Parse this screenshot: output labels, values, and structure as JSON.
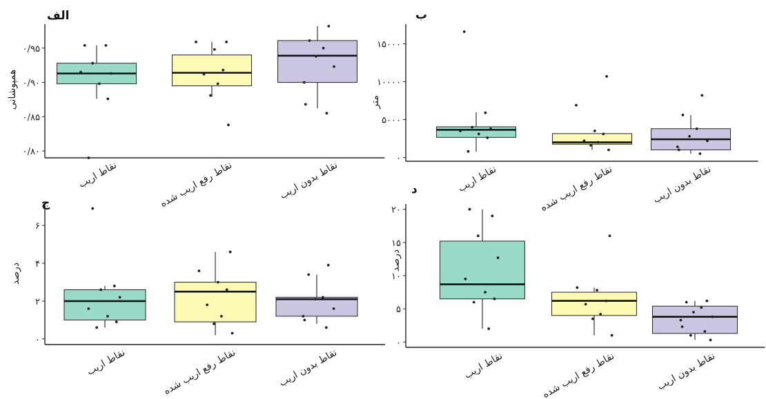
{
  "chart_data": [
    {
      "type": "box",
      "panel_label": "الف",
      "ylabel": "همپوشانی",
      "categories": [
        "نقاط اریب",
        "نقاط رفع اریب شده",
        "نقاط بدون اریب"
      ],
      "yticks": [
        {
          "value": 0.8,
          "label": "۰/۸۰"
        },
        {
          "value": 0.85,
          "label": "۰/۸۵"
        },
        {
          "value": 0.9,
          "label": "۰/۹۰"
        },
        {
          "value": 0.95,
          "label": "۰/۹۵"
        }
      ],
      "ylim": [
        0.79,
        0.985
      ],
      "boxes": [
        {
          "q1": 0.898,
          "median": 0.913,
          "q3": 0.928,
          "whisker_low": 0.876,
          "whisker_high": 0.954
        },
        {
          "q1": 0.895,
          "median": 0.914,
          "q3": 0.94,
          "whisker_low": 0.879,
          "whisker_high": 0.959
        },
        {
          "q1": 0.9,
          "median": 0.939,
          "q3": 0.961,
          "whisker_low": 0.862,
          "whisker_high": 0.982
        }
      ],
      "points": [
        [
          0.954,
          0.954,
          0.928,
          0.913,
          0.915,
          0.898,
          0.876,
          0.79
        ],
        [
          0.959,
          0.959,
          0.948,
          0.918,
          0.912,
          0.898,
          0.881,
          0.838
        ],
        [
          0.982,
          0.961,
          0.95,
          0.938,
          0.923,
          0.9,
          0.868,
          0.855
        ]
      ]
    },
    {
      "type": "box",
      "panel_label": "ب",
      "ylabel": "متر",
      "categories": [
        "نقاط اریب",
        "نقاط رفع اریب شده",
        "نقاط بدون اریب"
      ],
      "yticks": [
        {
          "value": 0,
          "label": "۰"
        },
        {
          "value": 5000,
          "label": "۵۰۰۰"
        },
        {
          "value": 10000,
          "label": "۱۰۰۰۰"
        },
        {
          "value": 15000,
          "label": "۱۵۰۰۰"
        }
      ],
      "ylim": [
        -500,
        17600
      ],
      "boxes": [
        {
          "q1": 2650,
          "median": 3650,
          "q3": 4050,
          "whisker_low": 750,
          "whisker_high": 5950
        },
        {
          "q1": 1750,
          "median": 2000,
          "q3": 3150,
          "whisker_low": 1000,
          "whisker_high": 3150
        },
        {
          "q1": 1000,
          "median": 2400,
          "q3": 3800,
          "whisker_low": 500,
          "whisker_high": 5600
        }
      ],
      "points": [
        [
          16600,
          5900,
          4000,
          3800,
          3500,
          3100,
          2600,
          800
        ],
        [
          10700,
          6900,
          3500,
          3100,
          2200,
          2000,
          1600,
          1000
        ],
        [
          8200,
          5600,
          3800,
          2800,
          2200,
          1400,
          1000,
          500
        ]
      ]
    },
    {
      "type": "box",
      "panel_label": "ج",
      "ylabel": "درصد",
      "categories": [
        "نقاط اریب",
        "نقاط رفع اریب شده",
        "نقاط بدون اریب"
      ],
      "yticks": [
        {
          "value": 0,
          "label": "۰"
        },
        {
          "value": 2,
          "label": "۲"
        },
        {
          "value": 4,
          "label": "۴"
        },
        {
          "value": 6,
          "label": "۶"
        }
      ],
      "ylim": [
        -0.3,
        7.1
      ],
      "boxes": [
        {
          "q1": 1.0,
          "median": 2.0,
          "q3": 2.6,
          "whisker_low": 0.6,
          "whisker_high": 2.8
        },
        {
          "q1": 0.9,
          "median": 2.5,
          "q3": 3.0,
          "whisker_low": 0.2,
          "whisker_high": 4.6
        },
        {
          "q1": 1.2,
          "median": 2.1,
          "q3": 2.2,
          "whisker_low": 0.8,
          "whisker_high": 3.4
        }
      ],
      "points": [
        [
          6.9,
          2.8,
          2.6,
          2.2,
          1.6,
          1.2,
          0.9,
          0.6
        ],
        [
          4.6,
          3.6,
          3.0,
          2.6,
          1.8,
          1.2,
          0.8,
          0.3
        ],
        [
          3.9,
          3.4,
          2.2,
          2.1,
          1.6,
          1.2,
          1.0,
          0.6
        ]
      ]
    },
    {
      "type": "box",
      "panel_label": "د",
      "ylabel": "درصد",
      "categories": [
        "نقاط اریب",
        "نقاط رفع اریب شده",
        "نقاط بدون اریب"
      ],
      "yticks": [
        {
          "value": 0,
          "label": "۰"
        },
        {
          "value": 5,
          "label": "۵"
        },
        {
          "value": 10,
          "label": "۱۰"
        },
        {
          "value": 15,
          "label": "۱۵"
        },
        {
          "value": 20,
          "label": "۲۰"
        }
      ],
      "ylim": [
        -0.8,
        20.8
      ],
      "boxes": [
        {
          "q1": 6.5,
          "median": 8.7,
          "q3": 15.2,
          "whisker_low": 2.0,
          "whisker_high": 20.0
        },
        {
          "q1": 4.0,
          "median": 6.2,
          "q3": 7.5,
          "whisker_low": 1.0,
          "whisker_high": 8.2
        },
        {
          "q1": 1.3,
          "median": 3.8,
          "q3": 5.4,
          "whisker_low": 0.3,
          "whisker_high": 6.2
        }
      ],
      "points": [
        [
          20.0,
          19.0,
          16.0,
          12.7,
          9.5,
          7.5,
          6.5,
          6.0,
          2.0
        ],
        [
          16.0,
          8.2,
          7.8,
          6.2,
          5.7,
          4.2,
          3.5,
          1.0
        ],
        [
          6.2,
          6.0,
          5.2,
          4.5,
          3.8,
          3.3,
          2.3,
          1.6,
          1.0,
          0.3
        ]
      ]
    }
  ],
  "colors": {
    "box_fills": [
      "#99dac9",
      "#fdfab6",
      "#cdc6e3"
    ],
    "box_stroke": "#333333",
    "median": "#111111",
    "points": "#222222",
    "axis": "#222222",
    "text": "#222222"
  }
}
